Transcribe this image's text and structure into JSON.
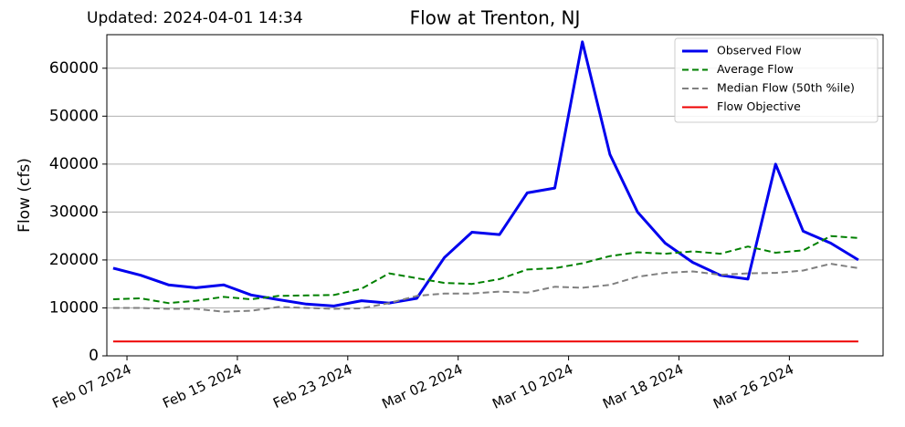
{
  "chart_data": {
    "type": "line",
    "title": "Flow at Trenton, NJ",
    "subtitle": "Updated: 2024-04-01 14:34",
    "ylabel": "Flow (cfs)",
    "x": [
      "2024-02-06",
      "2024-02-08",
      "2024-02-10",
      "2024-02-12",
      "2024-02-14",
      "2024-02-16",
      "2024-02-18",
      "2024-02-20",
      "2024-02-22",
      "2024-02-24",
      "2024-02-26",
      "2024-02-28",
      "2024-03-01",
      "2024-03-03",
      "2024-03-05",
      "2024-03-07",
      "2024-03-09",
      "2024-03-11",
      "2024-03-13",
      "2024-03-15",
      "2024-03-17",
      "2024-03-19",
      "2024-03-21",
      "2024-03-23",
      "2024-03-25",
      "2024-03-27",
      "2024-03-29",
      "2024-03-31"
    ],
    "series": [
      {
        "name": "Observed Flow",
        "color": "#0000ee",
        "style": "solid",
        "width": 3,
        "values": [
          18300,
          16800,
          14800,
          14200,
          14800,
          12700,
          11700,
          10800,
          10400,
          11500,
          11000,
          12000,
          20500,
          25800,
          25300,
          34000,
          35000,
          65500,
          42000,
          30000,
          23500,
          19500,
          16800,
          16000,
          40000,
          26000,
          23500,
          20000
        ]
      },
      {
        "name": "Average Flow",
        "color": "#008000",
        "style": "dashed",
        "width": 2,
        "values": [
          11800,
          12000,
          11000,
          11500,
          12300,
          11800,
          12500,
          12600,
          12700,
          14000,
          17200,
          16200,
          15200,
          15000,
          16000,
          18000,
          18300,
          19300,
          20800,
          21600,
          21300,
          21800,
          21300,
          22800,
          21500,
          22000,
          25000,
          24600
        ]
      },
      {
        "name": "Median Flow (50th %ile)",
        "color": "#808080",
        "style": "dashed",
        "width": 2,
        "values": [
          10000,
          10000,
          9800,
          9800,
          9200,
          9400,
          10200,
          10000,
          9800,
          9900,
          11000,
          12500,
          13000,
          13000,
          13400,
          13200,
          14400,
          14200,
          14800,
          16500,
          17300,
          17600,
          16900,
          17200,
          17300,
          17800,
          19200,
          18300
        ]
      },
      {
        "name": "Flow Objective",
        "color": "#ee0000",
        "style": "solid",
        "width": 2,
        "values": [
          3000,
          3000,
          3000,
          3000,
          3000,
          3000,
          3000,
          3000,
          3000,
          3000,
          3000,
          3000,
          3000,
          3000,
          3000,
          3000,
          3000,
          3000,
          3000,
          3000,
          3000,
          3000,
          3000,
          3000,
          3000,
          3000,
          3000,
          3000
        ]
      }
    ],
    "xlim": [
      "2024-02-05T13:00",
      "2024-04-01T19:00"
    ],
    "xticks": [
      {
        "value": "2024-02-07",
        "label": "Feb 07 2024"
      },
      {
        "value": "2024-02-15",
        "label": "Feb 15 2024"
      },
      {
        "value": "2024-02-23",
        "label": "Feb 23 2024"
      },
      {
        "value": "2024-03-02",
        "label": "Mar 02 2024"
      },
      {
        "value": "2024-03-10",
        "label": "Mar 10 2024"
      },
      {
        "value": "2024-03-18",
        "label": "Mar 18 2024"
      },
      {
        "value": "2024-03-26",
        "label": "Mar 26 2024"
      }
    ],
    "ylim": [
      0,
      67000
    ],
    "yticks": [
      0,
      10000,
      20000,
      30000,
      40000,
      50000,
      60000
    ],
    "grid": true,
    "legend": "upper right"
  }
}
